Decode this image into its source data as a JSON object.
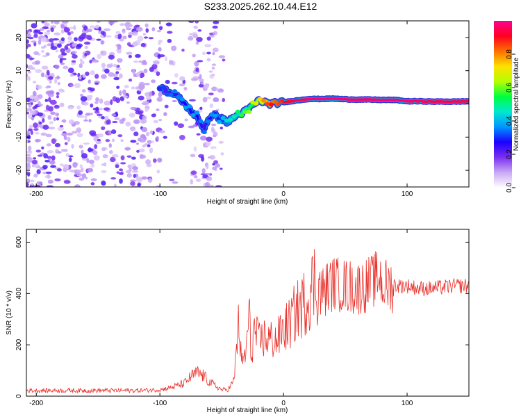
{
  "title": "S233.2025.262.10.44.E12",
  "chart_data": [
    {
      "type": "heatmap",
      "name": "spectrogram",
      "xlabel": "Height of straight line (km)",
      "ylabel": "Frequency (Hz)",
      "xlim": [
        -208,
        150
      ],
      "ylim": [
        -25,
        25
      ],
      "xticks": [
        -200,
        -100,
        0,
        100
      ],
      "xtick_labels": [
        "-200",
        "-100",
        "0",
        "100"
      ],
      "yticks": [
        20,
        10,
        0,
        -10,
        -20
      ],
      "ytick_labels": [
        "20",
        "10",
        "0",
        "-10",
        "-20"
      ],
      "colorbar": {
        "label": "Normalized spectral amplitude",
        "range": [
          0.0,
          1.0
        ],
        "ticks": [
          0.0,
          0.2,
          0.4,
          0.6,
          0.8
        ],
        "tick_labels": [
          "0.0",
          "0.2",
          "0.4",
          "0.6",
          "0.8"
        ],
        "colormap": [
          "#ffffff",
          "#c9a8f5",
          "#7a2ff0",
          "#1a00ff",
          "#0096ff",
          "#00e8d0",
          "#00ff40",
          "#b4ff00",
          "#ffe000",
          "#ff7000",
          "#ff0020",
          "#ff0090"
        ]
      },
      "ridge": {
        "x": [
          -100,
          -95,
          -90,
          -85,
          -80,
          -75,
          -70,
          -67,
          -64,
          -60,
          -55,
          -50,
          -45,
          -40,
          -35,
          -30,
          -25,
          -20,
          -15,
          -10,
          -5,
          0,
          10,
          20,
          30,
          40,
          50,
          60,
          70,
          80,
          90,
          100,
          110,
          120,
          130,
          140,
          150
        ],
        "y": [
          5,
          4,
          3,
          2,
          0,
          -2,
          -4,
          -6,
          -7,
          -4,
          -3.5,
          -4.5,
          -5.5,
          -4,
          -3,
          -2,
          -0.5,
          1,
          0.5,
          0,
          0.3,
          0.5,
          1,
          1.5,
          1.5,
          1.6,
          1.4,
          1.3,
          1.3,
          1.2,
          1.2,
          0.8,
          0.8,
          0.7,
          0.7,
          0.7,
          0.8
        ],
        "amplitude": [
          0.2,
          0.22,
          0.24,
          0.25,
          0.27,
          0.28,
          0.27,
          0.25,
          0.24,
          0.25,
          0.28,
          0.3,
          0.35,
          0.4,
          0.45,
          0.5,
          0.55,
          0.62,
          0.72,
          0.8,
          0.85,
          0.9,
          0.95,
          0.97,
          0.98,
          0.98,
          0.97,
          0.97,
          0.97,
          0.98,
          0.98,
          0.97,
          0.96,
          0.95,
          0.95,
          0.95,
          0.95
        ]
      }
    },
    {
      "type": "line",
      "name": "snr",
      "xlabel": "Height of straight line (km)",
      "ylabel": "SNR (10 * v/v)",
      "xlim": [
        -208,
        150
      ],
      "ylim": [
        0,
        650
      ],
      "xticks": [
        -200,
        -100,
        0,
        100
      ],
      "xtick_labels": [
        "-200",
        "-100",
        "0",
        "100"
      ],
      "yticks": [
        0,
        200,
        400,
        600
      ],
      "ytick_labels": [
        "0",
        "200",
        "400",
        "600"
      ],
      "color": "#e8302a",
      "series": [
        {
          "name": "SNR",
          "x": [
            -208,
            -200,
            -180,
            -160,
            -140,
            -120,
            -100,
            -90,
            -80,
            -75,
            -70,
            -65,
            -60,
            -55,
            -50,
            -45,
            -40,
            -38,
            -36,
            -34,
            -30,
            -28,
            -26,
            -24,
            -20,
            -15,
            -10,
            -5,
            0,
            5,
            10,
            15,
            20,
            25,
            30,
            40,
            50,
            60,
            70,
            78,
            80,
            90,
            100,
            110,
            120,
            130,
            140,
            150
          ],
          "y": [
            22,
            22,
            22,
            22,
            22,
            22,
            25,
            35,
            50,
            75,
            90,
            80,
            55,
            40,
            25,
            25,
            60,
            200,
            290,
            120,
            180,
            330,
            150,
            260,
            210,
            230,
            220,
            220,
            260,
            280,
            330,
            350,
            390,
            450,
            400,
            440,
            430,
            420,
            440,
            470,
            430,
            430,
            430,
            420,
            420,
            425,
            430,
            430
          ]
        }
      ]
    }
  ]
}
